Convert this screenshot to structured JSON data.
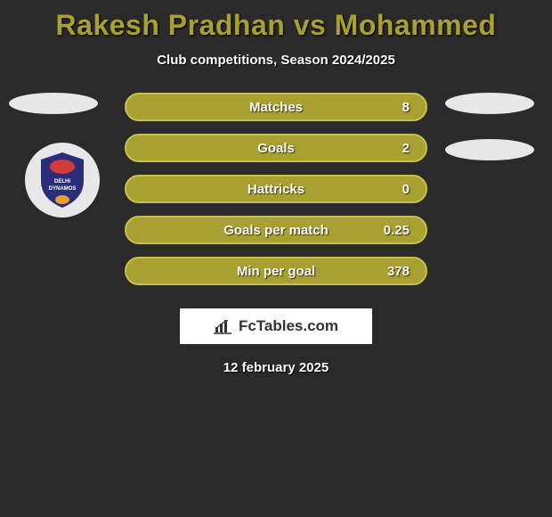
{
  "title": {
    "text": "Rakesh Pradhan vs Mohammed",
    "color": "#a8a030",
    "fontsize": 32
  },
  "subtitle": "Club competitions, Season 2024/2025",
  "stats": {
    "bar_fill": "#a8a030",
    "bar_border": "#c9c14f",
    "rows": [
      {
        "label": "Matches",
        "left": "",
        "right": "8"
      },
      {
        "label": "Goals",
        "left": "",
        "right": "2"
      },
      {
        "label": "Hattricks",
        "left": "",
        "right": "0"
      },
      {
        "label": "Goals per match",
        "left": "",
        "right": "0.25"
      },
      {
        "label": "Min per goal",
        "left": "",
        "right": "378"
      }
    ]
  },
  "ellipses": {
    "fill": "#e8e8e8"
  },
  "club_badge": {
    "shield_fill": "#2a2d7a",
    "text": "DELHI DYNAMOS",
    "accent_top": "#d43a3a",
    "accent_bottom": "#e8a030"
  },
  "logo": {
    "icon": "bar-chart-icon",
    "text": "FcTables.com",
    "bg": "#ffffff",
    "color": "#333333"
  },
  "date": "12 february 2025",
  "background": "#2a2a2a"
}
